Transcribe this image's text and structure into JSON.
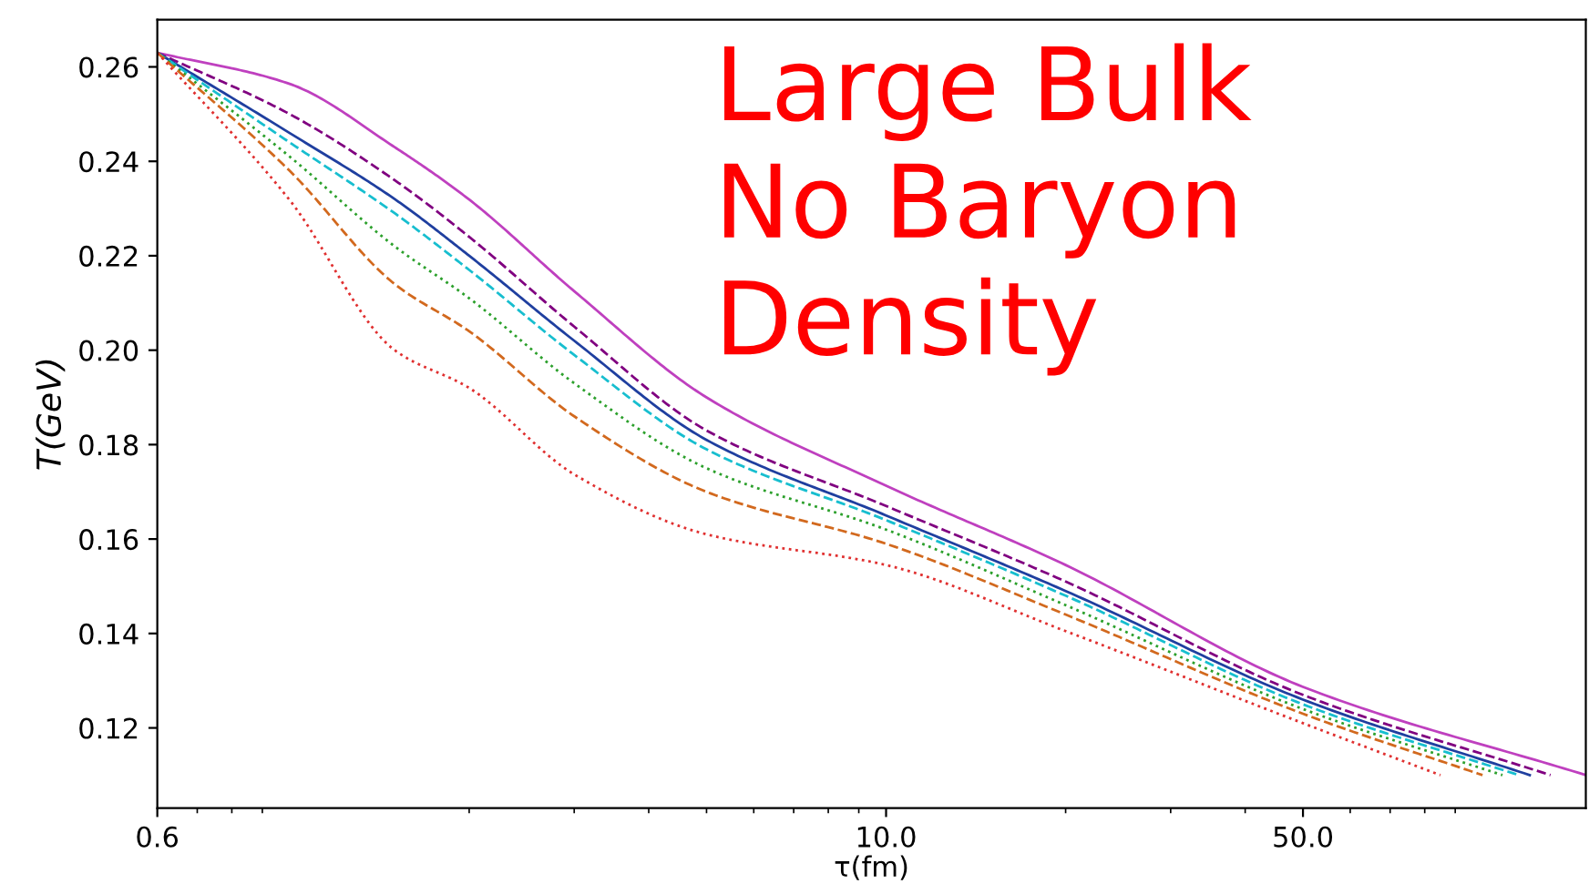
{
  "chart_data": {
    "type": "line",
    "xlabel": "τ(fm)",
    "ylabel": "T(GeV)",
    "log": "x",
    "xlim": [
      0.6,
      149
    ],
    "xticks": [
      0.6,
      {
        "value": 10,
        "label": "10.0"
      },
      {
        "value": 50,
        "label": "50.0"
      }
    ],
    "ylim": [
      0.103,
      0.27
    ],
    "yticks": [
      {
        "value": 0.12,
        "label": "0.12"
      },
      {
        "value": 0.14,
        "label": "0.14"
      },
      {
        "value": 0.16,
        "label": "0.16"
      },
      {
        "value": 0.18,
        "label": "0.18"
      },
      {
        "value": 0.2,
        "label": "0.20"
      },
      {
        "value": 0.22,
        "label": "0.22"
      },
      {
        "value": 0.24,
        "label": "0.24"
      },
      {
        "value": 0.26,
        "label": "0.26"
      }
    ],
    "grid": false,
    "legend": false,
    "marker": "none",
    "annotations": [
      "Large Bulk\nNo Baryon\nDensity"
    ],
    "series": [
      {
        "color": "#bf40bf",
        "line_style": "solid",
        "x": [
          0.6,
          1,
          1.5,
          2,
          3,
          5,
          10,
          20,
          50,
          149
        ],
        "values": [
          0.263,
          0.2564,
          0.243,
          0.2319,
          0.2125,
          0.19,
          0.1713,
          0.1545,
          0.1287,
          0.11
        ]
      },
      {
        "color": "#800080",
        "line_style": "dashed",
        "x": [
          0.6,
          1,
          1.5,
          2,
          3,
          5,
          10,
          20,
          50,
          130
        ],
        "values": [
          0.263,
          0.25,
          0.236,
          0.224,
          0.205,
          0.183,
          0.167,
          0.151,
          0.127,
          0.11
        ]
      },
      {
        "color": "#1f3f9f",
        "line_style": "solid",
        "x": [
          0.6,
          1,
          1.5,
          2,
          3,
          5,
          10,
          20,
          50,
          120
        ],
        "values": [
          0.263,
          0.246,
          0.232,
          0.22,
          0.202,
          0.181,
          0.165,
          0.149,
          0.126,
          0.11
        ]
      },
      {
        "color": "#17becf",
        "line_style": "dashed",
        "x": [
          0.6,
          1,
          1.5,
          2,
          3,
          5,
          10,
          20,
          50,
          115
        ],
        "values": [
          0.263,
          0.244,
          0.229,
          0.217,
          0.199,
          0.179,
          0.164,
          0.148,
          0.125,
          0.11
        ]
      },
      {
        "color": "#2ca02c",
        "line_style": "dotted",
        "x": [
          0.6,
          1,
          1.5,
          2,
          3,
          5,
          10,
          20,
          50,
          108
        ],
        "values": [
          0.263,
          0.241,
          0.222,
          0.211,
          0.193,
          0.175,
          0.162,
          0.146,
          0.124,
          0.11
        ]
      },
      {
        "color": "#d2691e",
        "line_style": "dashed",
        "x": [
          0.6,
          1,
          1.5,
          2,
          3,
          5,
          10,
          20,
          50,
          100
        ],
        "values": [
          0.263,
          0.238,
          0.214,
          0.204,
          0.186,
          0.17,
          0.159,
          0.144,
          0.123,
          0.11
        ]
      },
      {
        "color": "#e03030",
        "line_style": "dotted",
        "x": [
          0.6,
          1,
          1.5,
          2,
          3,
          5,
          10,
          20,
          50,
          85
        ],
        "values": [
          0.263,
          0.2318,
          0.2,
          0.192,
          0.1737,
          0.161,
          0.1545,
          0.1405,
          0.121,
          0.11
        ]
      }
    ]
  }
}
